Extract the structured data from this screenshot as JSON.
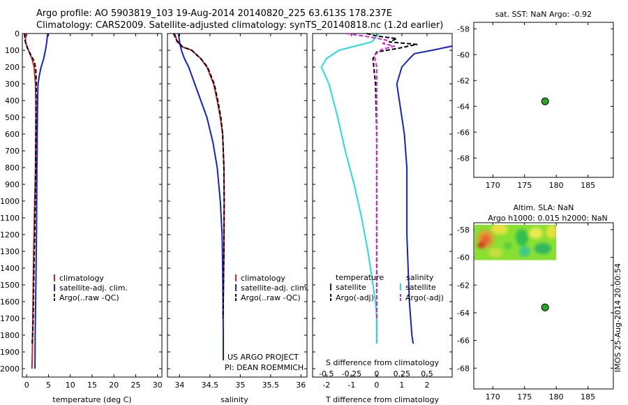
{
  "titles": {
    "line1": "Argo profile: AO 5903819_103 19-Aug-2014 20140820_225 63.613S 178.237E",
    "line2": "Climatology: CARS2009. Satellite-adjusted climatology: synTS_20140818.nc (1.2d earlier)"
  },
  "annotations": {
    "project": "US ARGO PROJECT",
    "pi": "PI: DEAN ROEMMICH",
    "timestamp": "IMOS 25-Aug-2014 20:00:54"
  },
  "colors": {
    "climatology": "#dd2222",
    "satellite": "#1122cc",
    "argo": "#000000",
    "satellite_diff": "#22dddd",
    "argo_diff": "#dd22dd",
    "marker": "#22aa22"
  },
  "chart_data": [
    {
      "type": "line",
      "panel": "temperature",
      "xlabel": "temperature (deg C)",
      "ylim": [
        2050,
        0
      ],
      "xlim": [
        -1,
        31
      ],
      "xticks": [
        "0",
        "5",
        "10",
        "15",
        "20",
        "25",
        "30"
      ],
      "yticks": [
        "0",
        "100",
        "200",
        "300",
        "400",
        "500",
        "600",
        "700",
        "800",
        "900",
        "1000",
        "1100",
        "1200",
        "1300",
        "1400",
        "1500",
        "1600",
        "1700",
        "1800",
        "1900",
        "2000"
      ],
      "legend": [
        "climatology",
        "satellite-adj. clim.",
        "Argo(..raw -QC)"
      ],
      "series": [
        {
          "name": "climatology",
          "x": [
            -0.2,
            -0.3,
            0.4,
            1.2,
            1.7,
            2.0,
            2.1,
            2.1,
            2.05,
            2.0,
            1.95,
            1.85,
            1.75,
            1.6,
            1.5,
            1.4,
            1.3,
            1.2
          ],
          "y": [
            0,
            50,
            100,
            150,
            200,
            300,
            400,
            600,
            700,
            800,
            900,
            1000,
            1100,
            1300,
            1500,
            1700,
            1900,
            2000
          ]
        },
        {
          "name": "satellite-adj. clim.",
          "x": [
            4.8,
            4.6,
            4.3,
            3.9,
            3.3,
            2.9,
            2.6,
            2.5,
            2.4,
            2.4,
            2.35,
            2.3,
            2.25,
            2.15,
            2.05,
            1.95,
            1.9
          ],
          "y": [
            0,
            50,
            100,
            150,
            200,
            250,
            300,
            400,
            600,
            700,
            800,
            1000,
            1200,
            1400,
            1600,
            1800,
            2000
          ]
        },
        {
          "name": "Argo(..raw -QC)",
          "x": [
            -0.5,
            -0.4,
            0.2,
            1.0,
            1.8,
            2.1,
            2.2,
            2.15,
            2.1,
            2.05,
            1.95,
            1.85,
            1.75,
            1.6,
            1.5,
            1.35,
            1.25
          ],
          "y": [
            0,
            40,
            90,
            130,
            170,
            220,
            300,
            400,
            600,
            800,
            1000,
            1200,
            1300,
            1500,
            1700,
            1800,
            1850
          ]
        }
      ]
    },
    {
      "type": "line",
      "panel": "salinity",
      "xlabel": "salinity",
      "ylim": [
        2050,
        0
      ],
      "xlim": [
        33.8,
        36.1
      ],
      "xticks": [
        "34",
        "34.5",
        "35",
        "35.5",
        "36"
      ],
      "legend": [
        "climatology",
        "satellite-adj. clim.",
        "Argo(..raw -QC)"
      ],
      "series": [
        {
          "name": "climatology",
          "x": [
            33.92,
            33.96,
            34.05,
            34.2,
            34.35,
            34.45,
            34.56,
            34.62,
            34.67,
            34.71,
            34.73,
            34.735,
            34.73,
            34.72,
            34.715
          ],
          "y": [
            0,
            50,
            80,
            100,
            150,
            200,
            300,
            400,
            500,
            600,
            800,
            1000,
            1300,
            1600,
            1700
          ]
        },
        {
          "name": "satellite-adj. clim.",
          "x": [
            33.98,
            34.0,
            34.03,
            34.08,
            34.15,
            34.25,
            34.35,
            34.45,
            34.55,
            34.62,
            34.67,
            34.7,
            34.71,
            34.715,
            34.72,
            34.72,
            34.72
          ],
          "y": [
            0,
            50,
            100,
            150,
            200,
            300,
            400,
            500,
            650,
            800,
            1000,
            1200,
            1400,
            1600,
            1800,
            1900,
            1950
          ]
        },
        {
          "name": "Argo(..raw -QC)",
          "x": [
            33.9,
            33.95,
            34.05,
            34.2,
            34.35,
            34.46,
            34.57,
            34.63,
            34.68,
            34.71,
            34.73,
            34.735,
            34.73,
            34.72,
            34.715
          ],
          "y": [
            0,
            40,
            80,
            100,
            150,
            200,
            300,
            400,
            500,
            600,
            800,
            1000,
            1300,
            1600,
            1700
          ]
        }
      ],
      "annotations": [
        "US ARGO PROJECT",
        "PI: DEAN ROEMMICH"
      ]
    },
    {
      "type": "line",
      "panel": "difference",
      "xlabel": "T difference from climatology",
      "xlabel_top": "S difference from climatology",
      "ylim": [
        2050,
        0
      ],
      "xlim": [
        -2.55,
        3.0
      ],
      "xticks": [
        "-2",
        "-1",
        "0",
        "1",
        "2"
      ],
      "xticks_top": [
        "-0.5",
        "-0.25",
        "0",
        "0.25",
        "0.5"
      ],
      "legend": [
        {
          "group": "temperature",
          "items": [
            "satellite",
            "Argo(-adj)"
          ]
        },
        {
          "group": "salinity",
          "items": [
            "satellite",
            "Argo(-adj)"
          ]
        }
      ],
      "series": [
        {
          "name": "temperature satellite",
          "x": [
            3.0,
            2.2,
            1.5,
            1.3,
            1.0,
            0.8,
            1.0,
            1.1,
            1.2,
            1.2,
            1.2,
            1.25,
            1.3,
            1.35,
            1.4,
            1.45
          ],
          "y": [
            75,
            100,
            120,
            150,
            200,
            300,
            500,
            600,
            800,
            1000,
            1200,
            1400,
            1600,
            1700,
            1800,
            1850
          ]
        },
        {
          "name": "temperature Argo(-adj)",
          "x": [
            -0.4,
            0.0,
            0.8,
            0.5,
            1.6,
            0.8,
            0.0,
            -0.15,
            -0.05,
            0.0,
            0.0,
            0.0,
            0.0,
            0.0,
            0.0
          ],
          "y": [
            0,
            15,
            30,
            50,
            65,
            90,
            110,
            150,
            300,
            600,
            1000,
            1400,
            1600,
            1700,
            1850
          ]
        },
        {
          "name": "salinity satellite",
          "x": [
            0.1,
            -0.2,
            -1.5,
            -2.0,
            -2.2,
            -1.9,
            -1.55,
            -1.25,
            -0.9,
            -0.6,
            -0.35,
            -0.15,
            -0.05,
            0.0,
            0.0,
            0.0
          ],
          "y": [
            0,
            50,
            100,
            150,
            200,
            300,
            500,
            700,
            900,
            1100,
            1300,
            1500,
            1600,
            1700,
            1800,
            1850
          ]
        },
        {
          "name": "salinity Argo(-adj)",
          "x": [
            -1.2,
            -0.3,
            0.4,
            0.25,
            0.7,
            0.2,
            -0.1,
            0.0,
            0.0,
            0.0,
            0.0,
            0.0,
            0.0
          ],
          "y": [
            0,
            20,
            40,
            60,
            75,
            95,
            130,
            200,
            600,
            1000,
            1400,
            1600,
            1700
          ]
        }
      ]
    },
    {
      "type": "scatter",
      "panel": "sst",
      "title": "sat. SST: NaN Argo: -0.92",
      "xlim": [
        167,
        189
      ],
      "ylim": [
        -69.5,
        -57.5
      ],
      "xticks": [
        "170",
        "175",
        "180",
        "185"
      ],
      "yticks": [
        "-58",
        "-60",
        "-62",
        "-64",
        "-66",
        "-68"
      ],
      "points": [
        {
          "x": 178.237,
          "y": -63.613
        }
      ]
    },
    {
      "type": "heatmap",
      "panel": "sla",
      "title_line1": "Altim. SLA: NaN",
      "title_line2": "Argo h1000: 0.015 h2000: NaN",
      "xlim": [
        167,
        189
      ],
      "ylim": [
        -69.5,
        -57.5
      ],
      "xticks": [
        "170",
        "175",
        "180",
        "185"
      ],
      "yticks": [
        "-58",
        "-60",
        "-62",
        "-64",
        "-66",
        "-68"
      ],
      "heatmap_extent": {
        "x": [
          167,
          180
        ],
        "y": [
          -60.2,
          -57.6
        ]
      },
      "points": [
        {
          "x": 178.237,
          "y": -63.613
        }
      ]
    }
  ]
}
